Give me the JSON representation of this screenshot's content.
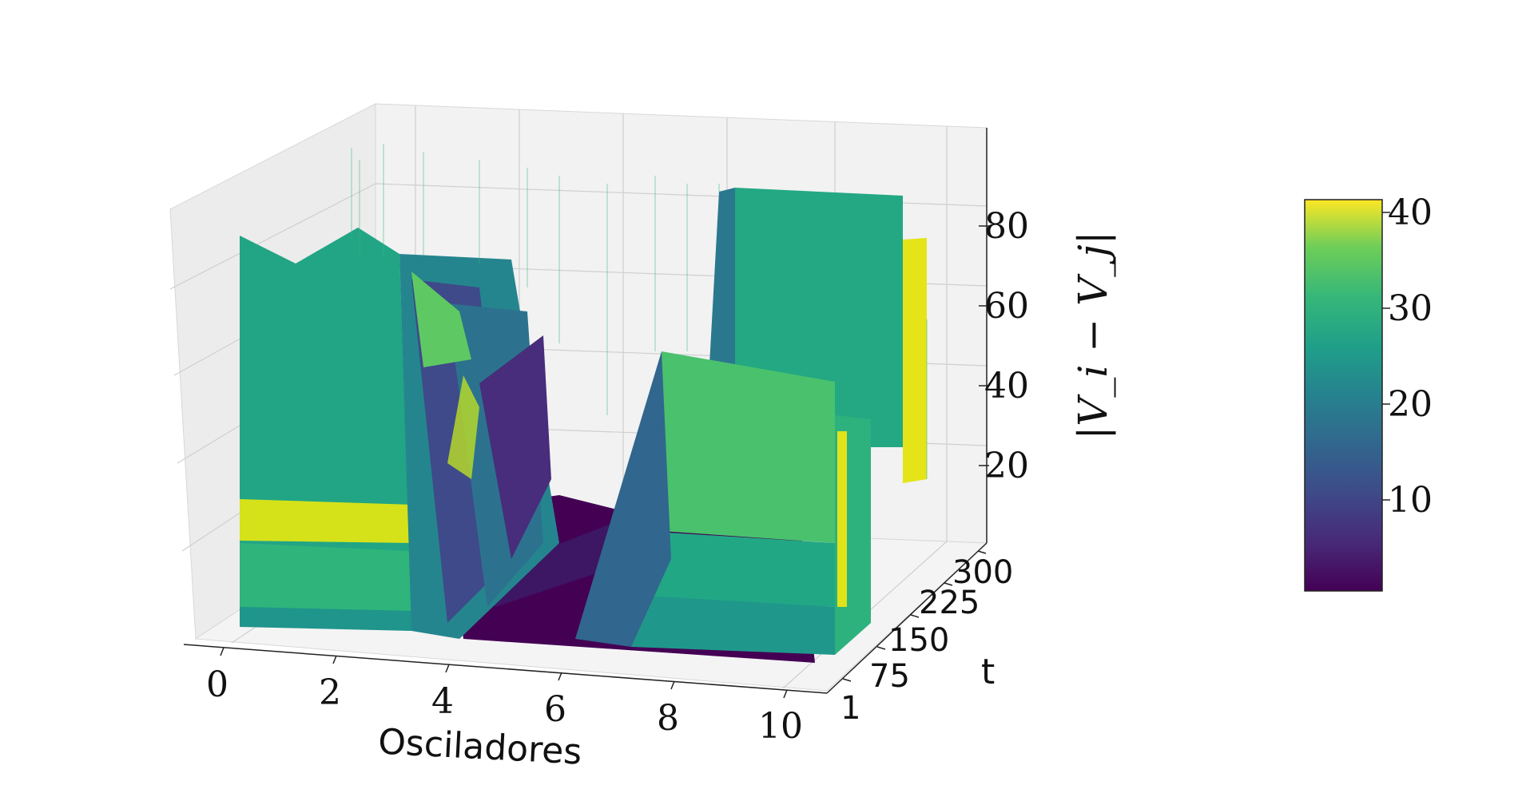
{
  "chart_data": {
    "type": "surface3d",
    "colormap": "viridis",
    "x": {
      "label": "Osciladores",
      "ticks": [
        "0",
        "2",
        "4",
        "6",
        "8",
        "10"
      ],
      "range": [
        0,
        10
      ]
    },
    "t": {
      "label": "t",
      "ticks": [
        "1",
        "75",
        "150",
        "225",
        "300"
      ],
      "range": [
        1,
        300
      ]
    },
    "z": {
      "label": "|V_i − V_j|",
      "ticks": [
        "20",
        "40",
        "60",
        "80"
      ],
      "range": [
        0,
        95
      ]
    },
    "colorbar": {
      "ticks": [
        "10",
        "20",
        "30",
        "40"
      ],
      "range": [
        0.5,
        41.5
      ]
    },
    "surface_profile": {
      "x": [
        0,
        1,
        2,
        3,
        4,
        5,
        6,
        7,
        8,
        9,
        10
      ],
      "z_at_far_t": [
        72,
        70,
        66,
        62,
        15,
        2,
        3,
        60,
        85,
        80,
        30
      ],
      "z_at_near_t": [
        70,
        75,
        72,
        55,
        20,
        1,
        2,
        55,
        55,
        50,
        8
      ]
    }
  }
}
